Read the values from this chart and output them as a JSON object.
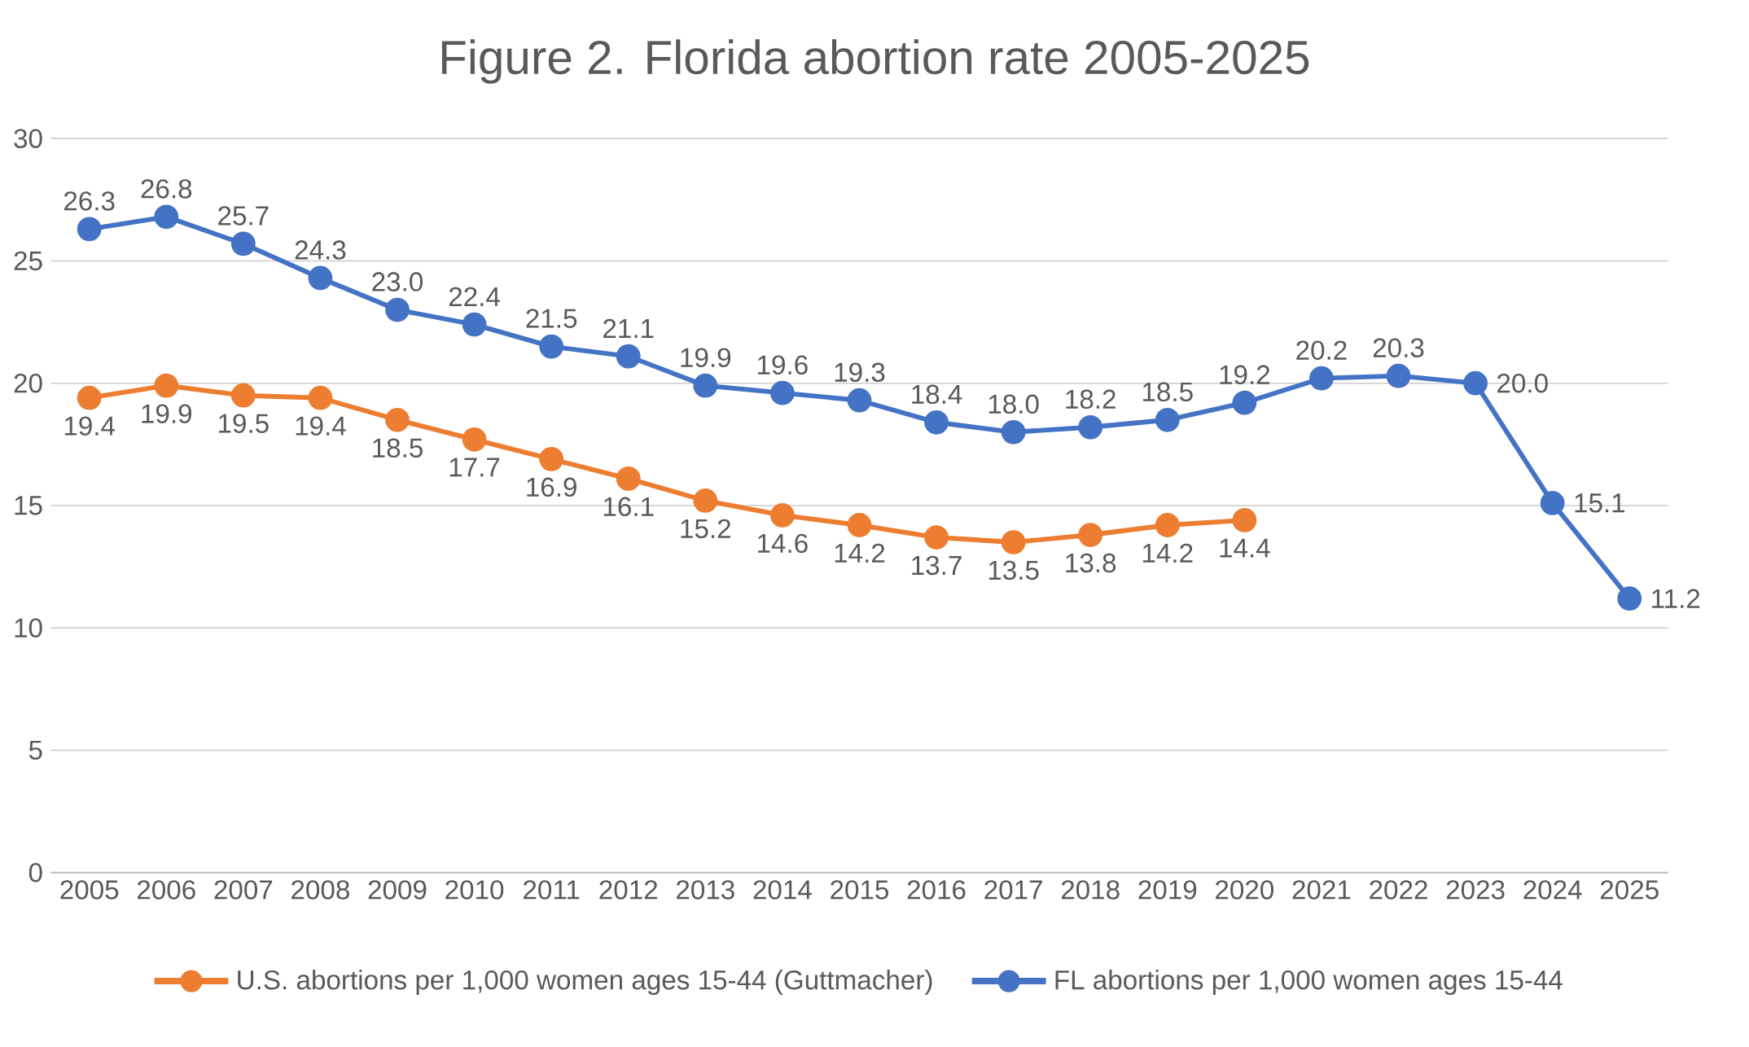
{
  "chart_data": {
    "type": "line",
    "title": "Figure 2. Florida abortion rate 2005-2025",
    "categories": [
      "2005",
      "2006",
      "2007",
      "2008",
      "2009",
      "2010",
      "2011",
      "2012",
      "2013",
      "2014",
      "2015",
      "2016",
      "2017",
      "2018",
      "2019",
      "2020",
      "2021",
      "2022",
      "2023",
      "2024",
      "2025"
    ],
    "series": [
      {
        "name": "U.S. abortions per 1,000 women ages 15-44 (Guttmacher)",
        "color": "#ed7d31",
        "values": [
          19.4,
          19.9,
          19.5,
          19.4,
          18.5,
          17.7,
          16.9,
          16.1,
          15.2,
          14.6,
          14.2,
          13.7,
          13.5,
          13.8,
          14.2,
          14.4,
          null,
          null,
          null,
          null,
          null
        ],
        "value_labels": [
          "19.4",
          "19.9",
          "19.5",
          "19.4",
          "18.5",
          "17.7",
          "16.9",
          "16.1",
          "15.2",
          "14.6",
          "14.2",
          "13.7",
          "13.5",
          "13.8",
          "14.2",
          "14.4",
          null,
          null,
          null,
          null,
          null
        ]
      },
      {
        "name": "FL abortions per 1,000 women ages 15-44",
        "color": "#4472c4",
        "values": [
          26.3,
          26.8,
          25.7,
          24.3,
          23.0,
          22.4,
          21.5,
          21.1,
          19.9,
          19.6,
          19.3,
          18.4,
          18.0,
          18.2,
          18.5,
          19.2,
          20.2,
          20.3,
          20.0,
          15.1,
          11.2
        ],
        "value_labels": [
          "26.3",
          "26.8",
          "25.7",
          "24.3",
          "23.0",
          "22.4",
          "21.5",
          "21.1",
          "19.9",
          "19.6",
          "19.3",
          "18.4",
          "18.0",
          "18.2",
          "18.5",
          "19.2",
          "20.2",
          "20.3",
          "20.0",
          "15.1",
          "11.2"
        ]
      }
    ],
    "ylim": [
      0,
      30
    ],
    "yticks": [
      0,
      5,
      10,
      15,
      20,
      25,
      30
    ],
    "grid": "y",
    "legend": "bottom",
    "marker": "circle",
    "line_style": "solid"
  }
}
